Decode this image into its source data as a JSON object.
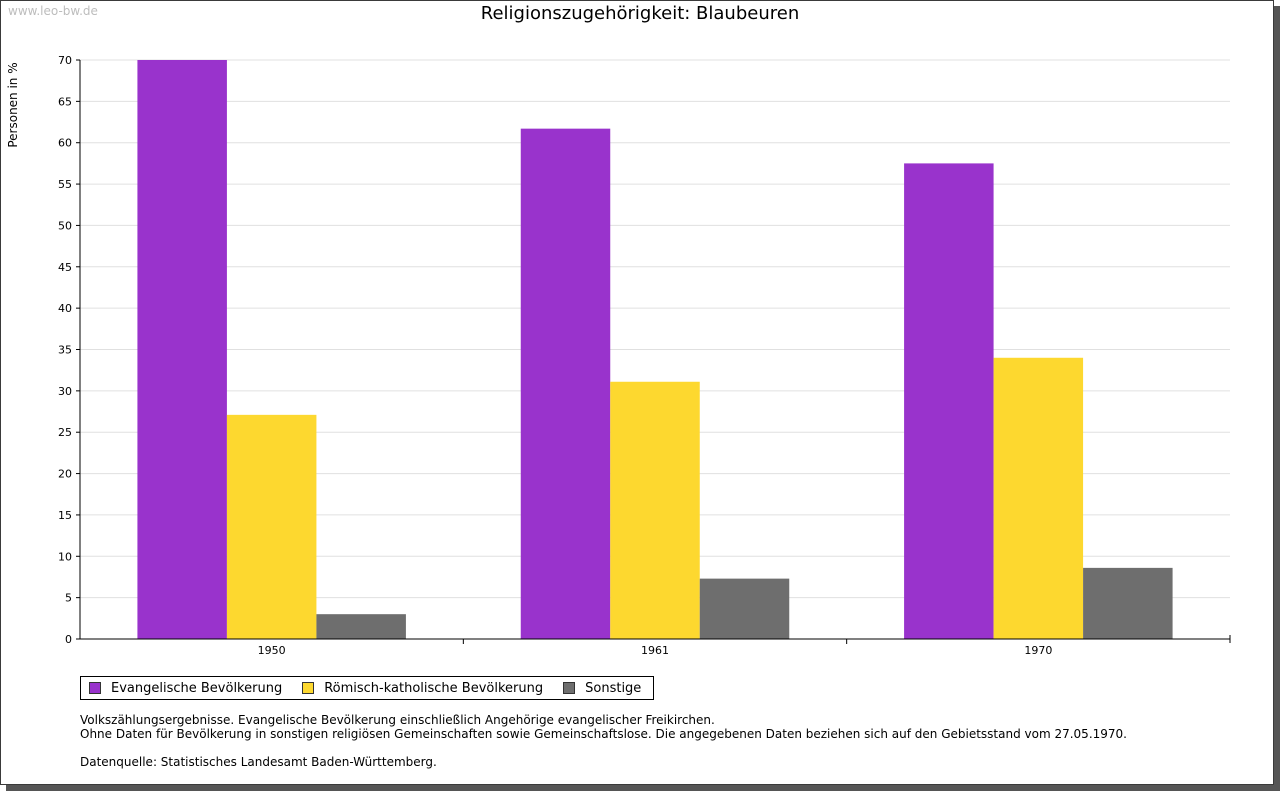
{
  "watermark": "www.leo-bw.de",
  "colors": {
    "evangelisch": "#9933cc",
    "katholisch": "#fdd82f",
    "sonstige": "#6e6e6e",
    "grid": "#e0e0e0",
    "axis": "#000000"
  },
  "chart_data": {
    "type": "bar",
    "title": "Religionszugehörigkeit: Blaubeuren",
    "xlabel": "",
    "ylabel": "Personen in %",
    "ylim": [
      0,
      70
    ],
    "yticks": [
      0,
      5,
      10,
      15,
      20,
      25,
      30,
      35,
      40,
      45,
      50,
      55,
      60,
      65,
      70
    ],
    "categories": [
      "1950",
      "1961",
      "1970"
    ],
    "grid": true,
    "legend_position": "bottom-left",
    "series": [
      {
        "name": "Evangelische Bevölkerung",
        "color_key": "evangelisch",
        "values": [
          70.0,
          61.7,
          57.5
        ]
      },
      {
        "name": "Römisch-katholische Bevölkerung",
        "color_key": "katholisch",
        "values": [
          27.1,
          31.1,
          34.0
        ]
      },
      {
        "name": "Sonstige",
        "color_key": "sonstige",
        "values": [
          3.0,
          7.3,
          8.6
        ]
      }
    ]
  },
  "notes": {
    "line1": "Volkszählungsergebnisse. Evangelische Bevölkerung einschließlich Angehörige evangelischer Freikirchen.",
    "line2": "Ohne Daten für Bevölkerung in sonstigen religiösen Gemeinschaften sowie Gemeinschaftslose. Die angegebenen Daten beziehen sich auf den Gebietsstand vom 27.05.1970.",
    "source": "Datenquelle: Statistisches Landesamt Baden-Württemberg."
  }
}
